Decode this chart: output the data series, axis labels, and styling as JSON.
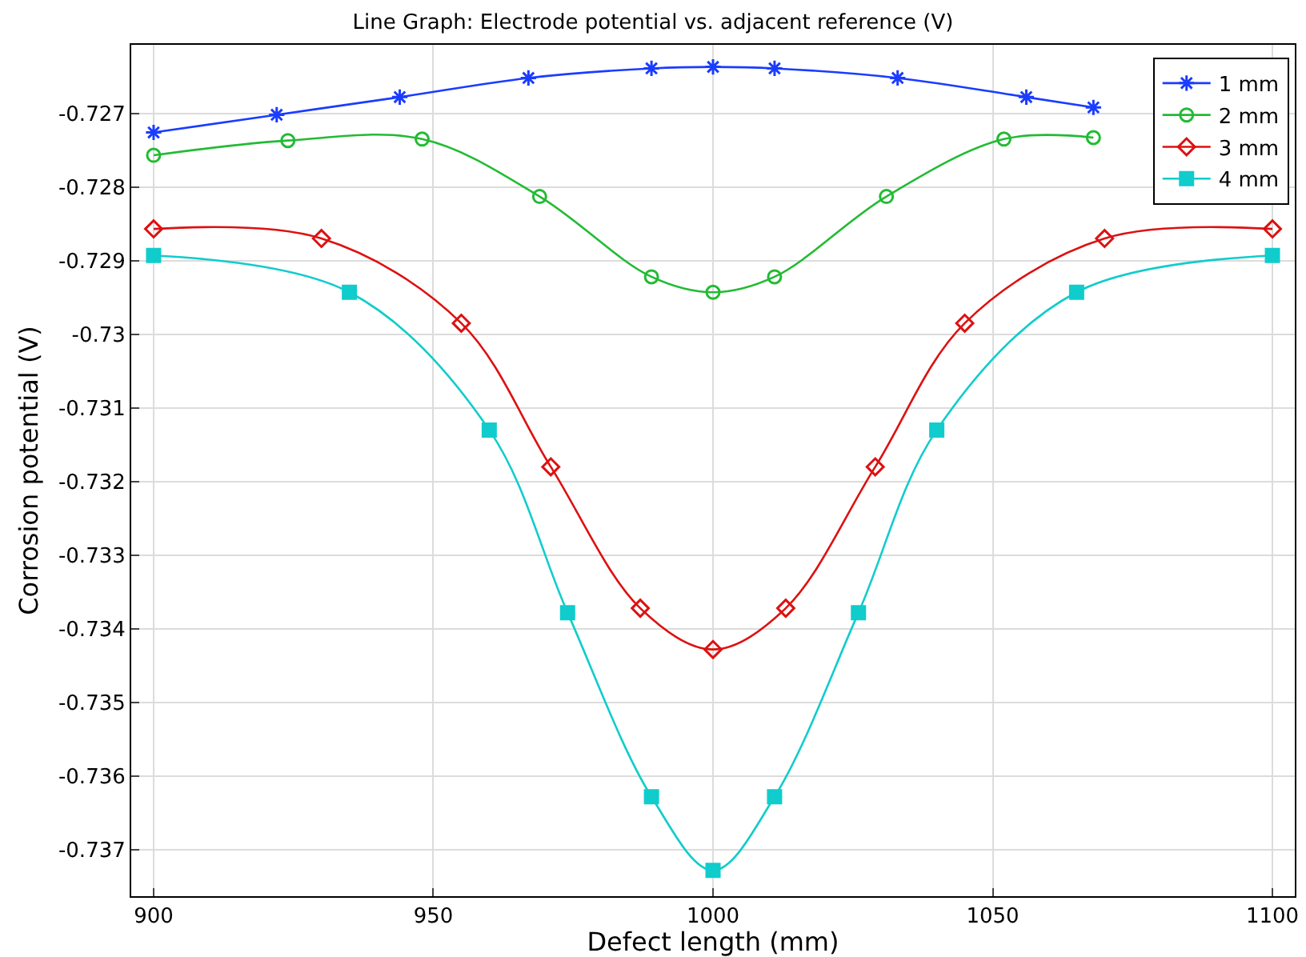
{
  "chart_data": {
    "type": "line",
    "title": "Line Graph: Electrode potential vs. adjacent reference (V)",
    "xlabel": "Defect length (mm)",
    "ylabel": "Corrosion potential (V)",
    "xlim": [
      896,
      1104
    ],
    "xticks": [
      900,
      950,
      1000,
      1050,
      1100
    ],
    "ylim": [
      -0.73763,
      -0.72607
    ],
    "yticks": [
      -0.727,
      -0.728,
      -0.729,
      -0.73,
      -0.731,
      -0.732,
      -0.733,
      -0.734,
      -0.735,
      -0.736,
      -0.737
    ],
    "grid": true,
    "legend": "top right",
    "line_style": "solid",
    "series": [
      {
        "name": "1 mm",
        "color": "#1a3cff",
        "marker": "cross",
        "x": [
          900,
          922,
          944,
          967,
          989,
          1000,
          1011,
          1033,
          1056,
          1068
        ],
        "values": [
          -0.72726,
          -0.72702,
          -0.72678,
          -0.72652,
          -0.72639,
          -0.72637,
          -0.72639,
          -0.72652,
          -0.72678,
          -0.72692
        ]
      },
      {
        "name": "2 mm",
        "color": "#22bb33",
        "marker": "circle",
        "x": [
          900,
          924,
          948,
          969,
          989,
          1000,
          1011,
          1031,
          1052,
          1068
        ],
        "values": [
          -0.72757,
          -0.72737,
          -0.72735,
          -0.72813,
          -0.72922,
          -0.72943,
          -0.72922,
          -0.72813,
          -0.72735,
          -0.72733
        ]
      },
      {
        "name": "3 mm",
        "color": "#dd1111",
        "marker": "diamond",
        "x": [
          900,
          930,
          955,
          971,
          987,
          1000,
          1013,
          1029,
          1045,
          1070,
          1100
        ],
        "values": [
          -0.72857,
          -0.7287,
          -0.72985,
          -0.7318,
          -0.73372,
          -0.73428,
          -0.73372,
          -0.7318,
          -0.72985,
          -0.7287,
          -0.72857
        ]
      },
      {
        "name": "4 mm",
        "color": "#11cccc",
        "marker": "square",
        "x": [
          900,
          935,
          960,
          974,
          989,
          1000,
          1011,
          1026,
          1040,
          1065,
          1100
        ],
        "values": [
          -0.72893,
          -0.72943,
          -0.7313,
          -0.73378,
          -0.73628,
          -0.73728,
          -0.73628,
          -0.73378,
          -0.7313,
          -0.72943,
          -0.72893
        ]
      }
    ]
  }
}
